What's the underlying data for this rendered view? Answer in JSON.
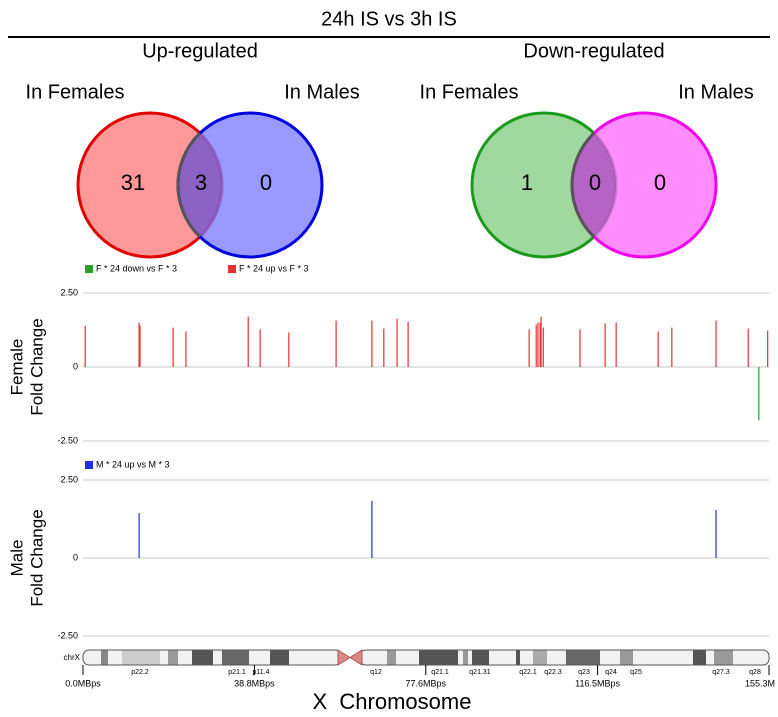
{
  "title": "24h IS vs 3h IS",
  "chart_data": [
    {
      "type": "venn",
      "title": "Up-regulated",
      "sets": [
        {
          "name": "In Females",
          "color": "#ff8080",
          "stroke": "#e00000"
        },
        {
          "name": "In Males",
          "color": "#8080ff",
          "stroke": "#0000dd"
        }
      ],
      "values": [
        31,
        3,
        0
      ]
    },
    {
      "type": "venn",
      "title": "Down-regulated",
      "sets": [
        {
          "name": "In Females",
          "color": "#88d088",
          "stroke": "#1a9a1a"
        },
        {
          "name": "In Males",
          "color": "#ff70ff",
          "stroke": "#ee00ee"
        }
      ],
      "values": [
        1,
        0,
        0
      ]
    },
    {
      "type": "spike",
      "ylabel": [
        "Female",
        "Fold Change"
      ],
      "ylim": [
        -2.5,
        2.5
      ],
      "yticks": [
        {
          "value": -2.5,
          "label": "-2.50"
        },
        0,
        {
          "value": 2.5,
          "label": "2.50"
        }
      ],
      "grid": true,
      "series": [
        {
          "name": "F * 24 down vs F * 3",
          "color": "#2ca02c",
          "x": [
            153.0
          ],
          "values": [
            -1.8
          ]
        },
        {
          "name": "F * 24 up vs F * 3",
          "color": "#e83030",
          "x": [
            0.5,
            12.7,
            12.9,
            20.4,
            23.3,
            37.4,
            40.1,
            46.6,
            57.3,
            65.4,
            68.1,
            71.1,
            73.6,
            101.0,
            102.6,
            103.0,
            103.5,
            103.7,
            104.2,
            112.5,
            118.2,
            120.7,
            130.2,
            133.3,
            143.3,
            150.6,
            155.0
          ],
          "values": [
            1.4,
            1.5,
            1.4,
            1.33,
            1.2,
            1.7,
            1.27,
            1.17,
            1.57,
            1.57,
            1.3,
            1.63,
            1.53,
            1.27,
            1.43,
            1.5,
            1.5,
            1.7,
            1.33,
            1.27,
            1.47,
            1.5,
            1.2,
            1.33,
            1.57,
            1.3,
            1.23
          ]
        }
      ]
    },
    {
      "type": "spike",
      "ylabel": [
        "Male",
        "Fold Change"
      ],
      "ylim": [
        -2.5,
        2.5
      ],
      "yticks": [
        {
          "value": -2.5,
          "label": "-2.50"
        },
        0,
        {
          "value": 2.5,
          "label": "2.50"
        }
      ],
      "grid": true,
      "series": [
        {
          "name": "M * 24 up vs M * 3",
          "color": "#2030e0",
          "x": [
            12.7,
            65.4,
            143.3
          ],
          "values": [
            1.44,
            1.83,
            1.54
          ]
        }
      ]
    }
  ],
  "chromosome_axis": {
    "label": "X  Chromosome",
    "chromosome": "chrX",
    "xlim": [
      0,
      155.3
    ],
    "xticks": [
      {
        "value": 0,
        "label": "0.0MBps"
      },
      {
        "value": 38.8,
        "label": "38.8MBps"
      },
      {
        "value": 77.6,
        "label": "77.6MBps"
      },
      {
        "value": 116.5,
        "label": "116.5MBps"
      },
      {
        "value": 155.3,
        "label": "155.3M"
      }
    ],
    "bands": [
      "p22.2",
      "p21.1",
      "p11.4",
      "q12",
      "q21.1",
      "q21.31",
      "q22.1",
      "q22.3",
      "q23",
      "q24",
      "q25",
      "q27.3",
      "q28"
    ]
  }
}
